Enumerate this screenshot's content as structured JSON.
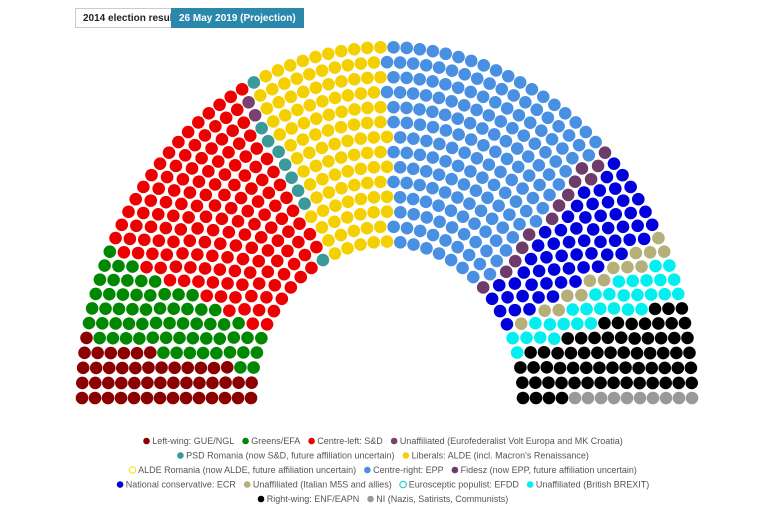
{
  "tabs": [
    "2014 election result",
    "26 May 2019 (Projection)"
  ],
  "chart_data": {
    "type": "parliament",
    "series": [
      {
        "name": "Left-wing: GUE/NGL",
        "color": "#8b0000",
        "value": 47
      },
      {
        "name": "Greens/EFA",
        "color": "#008800",
        "value": 62
      },
      {
        "name": "Centre-left: S&D",
        "color": "#ee0000",
        "value": 150
      },
      {
        "name": "Unaffiliated (Eurofederalist Volt Europa and MK Croatia)",
        "color": "#7b3f6e",
        "value": 2
      },
      {
        "name": "PSD Romania (now S&D, future affiliation uncertain)",
        "color": "#3a9a9a",
        "value": 9
      },
      {
        "name": "Liberals: ALDE (incl. Macron's Renaissance)",
        "color": "#f5d000",
        "value": 107
      },
      {
        "name": "ALDE Romania (now ALDE, future affiliation uncertain)",
        "color": "#f5e000",
        "value": 0,
        "hollow": true
      },
      {
        "name": "Centre-right: EPP",
        "color": "#4a90e2",
        "value": 180
      },
      {
        "name": "Fidesz (now EPP, future affiliation uncertain)",
        "color": "#6d3c6b",
        "value": 13
      },
      {
        "name": "National conservative: ECR",
        "color": "#0000dd",
        "value": 62
      },
      {
        "name": "Unaffiliated (Italian M5S and allies)",
        "color": "#b5b07a",
        "value": 14
      },
      {
        "name": "Eurosceptic populist: EFDD",
        "color": "#00c8c8",
        "value": 0,
        "hollow": true
      },
      {
        "name": "Unaffiliated (British BREXIT)",
        "color": "#00f0f0",
        "value": 30
      },
      {
        "name": "Right-wing: ENF/EAPN",
        "color": "#000000",
        "value": 65
      },
      {
        "name": "NI (Nazis, Satirists, Communists)",
        "color": "#999999",
        "value": 10
      }
    ]
  }
}
